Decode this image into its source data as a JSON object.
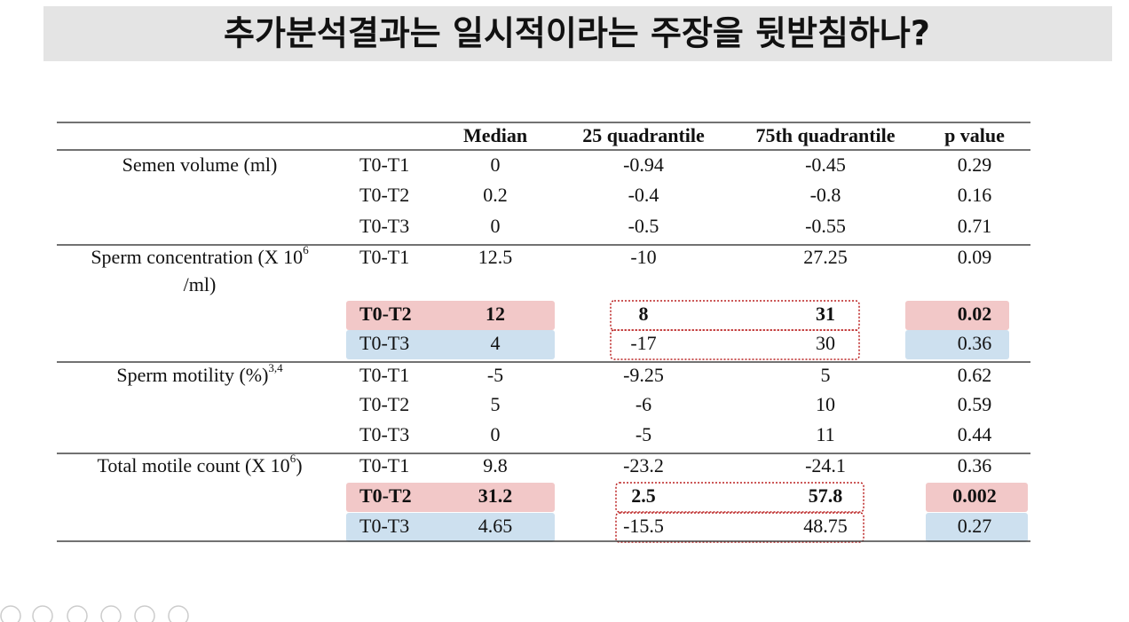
{
  "title": "추가분석결과는 일시적이라는 주장을 뒷받침하나?",
  "table": {
    "header": [
      "Median",
      "25 quadrantile",
      "75th quadrantile",
      "p value"
    ],
    "groups": [
      {
        "label": "Semen volume (ml)",
        "rows": [
          {
            "interval": "T0-T1",
            "median": "0",
            "q25": "-0.94",
            "q75": "-0.45",
            "p": "0.29"
          },
          {
            "interval": "T0-T2",
            "median": "0.2",
            "q25": "-0.4",
            "q75": "-0.8",
            "p": "0.16"
          },
          {
            "interval": "T0-T3",
            "median": "0",
            "q25": "-0.5",
            "q75": "-0.55",
            "p": "0.71"
          }
        ]
      },
      {
        "label": "Sperm concentration (X 10",
        "sup": "6",
        "label_end": "/ml)",
        "rows": [
          {
            "interval": "T0-T1",
            "median": "12.5",
            "q25": "-10",
            "q75": "27.25",
            "p": "0.09"
          },
          {
            "interval": "T0-T2",
            "median": "12",
            "q25": "8",
            "q75": "31",
            "p": "0.02",
            "highlight": "red"
          },
          {
            "interval": "T0-T3",
            "median": "4",
            "q25": "-17",
            "q75": "30",
            "p": "0.36",
            "highlight": "blue"
          }
        ]
      },
      {
        "label": "Sperm motility (%)",
        "sup": "3,4",
        "rows": [
          {
            "interval": "T0-T1",
            "median": "-5",
            "q25": "-9.25",
            "q75": "5",
            "p": "0.62"
          },
          {
            "interval": "T0-T2",
            "median": "5",
            "q25": "-6",
            "q75": "10",
            "p": "0.59"
          },
          {
            "interval": "T0-T3",
            "median": "0",
            "q25": "-5",
            "q75": "11",
            "p": "0.44"
          }
        ]
      },
      {
        "label": "Total motile count  (X 10",
        "sup": "6",
        "label_end": ")",
        "rows": [
          {
            "interval": "T0-T1",
            "median": "9.8",
            "q25": "-23.2",
            "q75": "-24.1",
            "p": "0.36"
          },
          {
            "interval": "T0-T2",
            "median": "31.2",
            "q25": "2.5",
            "q75": "57.8",
            "p": "0.002",
            "highlight": "red"
          },
          {
            "interval": "T0-T3",
            "median": "4.65",
            "q25": "-15.5",
            "q75": "48.75",
            "p": "0.27",
            "highlight": "blue"
          }
        ]
      }
    ]
  }
}
